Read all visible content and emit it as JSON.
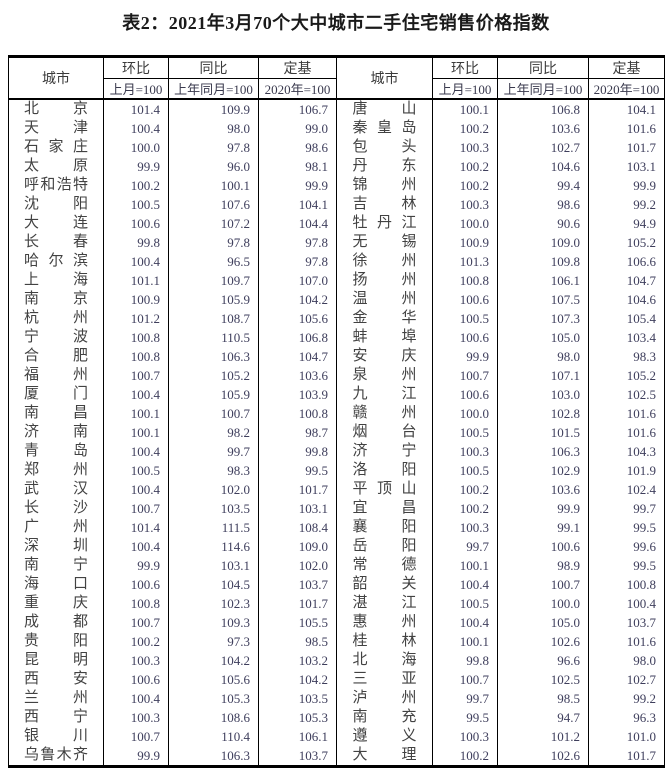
{
  "title": "表2：2021年3月70个大中城市二手住宅销售价格指数",
  "table": {
    "columns": {
      "city": "城市",
      "mom": "环比",
      "mom_base": "上月=100",
      "yoy": "同比",
      "yoy_base": "上年同月=100",
      "fixed": "定基",
      "fixed_base": "2020年=100"
    },
    "left_rows": [
      {
        "city": "北京",
        "mom": "101.4",
        "yoy": "109.9",
        "fixed": "106.7"
      },
      {
        "city": "天津",
        "mom": "100.4",
        "yoy": "98.0",
        "fixed": "99.0"
      },
      {
        "city": "石家庄",
        "mom": "100.0",
        "yoy": "97.8",
        "fixed": "98.6"
      },
      {
        "city": "太原",
        "mom": "99.9",
        "yoy": "96.0",
        "fixed": "98.1"
      },
      {
        "city": "呼和浩特",
        "mom": "100.2",
        "yoy": "100.1",
        "fixed": "99.9"
      },
      {
        "city": "沈阳",
        "mom": "100.5",
        "yoy": "107.6",
        "fixed": "104.1"
      },
      {
        "city": "大连",
        "mom": "100.6",
        "yoy": "107.2",
        "fixed": "104.4"
      },
      {
        "city": "长春",
        "mom": "99.8",
        "yoy": "97.8",
        "fixed": "97.8"
      },
      {
        "city": "哈尔滨",
        "mom": "100.4",
        "yoy": "96.5",
        "fixed": "97.8"
      },
      {
        "city": "上海",
        "mom": "101.1",
        "yoy": "109.7",
        "fixed": "107.0"
      },
      {
        "city": "南京",
        "mom": "100.9",
        "yoy": "105.9",
        "fixed": "104.2"
      },
      {
        "city": "杭州",
        "mom": "101.2",
        "yoy": "108.7",
        "fixed": "105.6"
      },
      {
        "city": "宁波",
        "mom": "100.8",
        "yoy": "110.5",
        "fixed": "106.8"
      },
      {
        "city": "合肥",
        "mom": "100.8",
        "yoy": "106.3",
        "fixed": "104.7"
      },
      {
        "city": "福州",
        "mom": "100.7",
        "yoy": "105.2",
        "fixed": "103.6"
      },
      {
        "city": "厦门",
        "mom": "100.4",
        "yoy": "105.9",
        "fixed": "103.9"
      },
      {
        "city": "南昌",
        "mom": "100.1",
        "yoy": "100.7",
        "fixed": "100.8"
      },
      {
        "city": "济南",
        "mom": "100.1",
        "yoy": "98.2",
        "fixed": "98.7"
      },
      {
        "city": "青岛",
        "mom": "100.4",
        "yoy": "99.7",
        "fixed": "99.8"
      },
      {
        "city": "郑州",
        "mom": "100.5",
        "yoy": "98.3",
        "fixed": "99.5"
      },
      {
        "city": "武汉",
        "mom": "100.4",
        "yoy": "102.0",
        "fixed": "101.7"
      },
      {
        "city": "长沙",
        "mom": "100.7",
        "yoy": "103.5",
        "fixed": "103.1"
      },
      {
        "city": "广州",
        "mom": "101.4",
        "yoy": "111.5",
        "fixed": "108.4"
      },
      {
        "city": "深圳",
        "mom": "100.4",
        "yoy": "114.6",
        "fixed": "109.0"
      },
      {
        "city": "南宁",
        "mom": "99.9",
        "yoy": "103.1",
        "fixed": "102.0"
      },
      {
        "city": "海口",
        "mom": "100.6",
        "yoy": "104.5",
        "fixed": "103.7"
      },
      {
        "city": "重庆",
        "mom": "100.8",
        "yoy": "102.3",
        "fixed": "101.7"
      },
      {
        "city": "成都",
        "mom": "100.7",
        "yoy": "109.3",
        "fixed": "105.5"
      },
      {
        "city": "贵阳",
        "mom": "100.2",
        "yoy": "97.3",
        "fixed": "98.5"
      },
      {
        "city": "昆明",
        "mom": "100.3",
        "yoy": "104.2",
        "fixed": "103.2"
      },
      {
        "city": "西安",
        "mom": "100.6",
        "yoy": "105.6",
        "fixed": "104.2"
      },
      {
        "city": "兰州",
        "mom": "100.4",
        "yoy": "105.3",
        "fixed": "103.5"
      },
      {
        "city": "西宁",
        "mom": "100.3",
        "yoy": "108.6",
        "fixed": "105.3"
      },
      {
        "city": "银川",
        "mom": "100.7",
        "yoy": "110.4",
        "fixed": "106.1"
      },
      {
        "city": "乌鲁木齐",
        "mom": "99.9",
        "yoy": "106.3",
        "fixed": "103.7"
      }
    ],
    "right_rows": [
      {
        "city": "唐山",
        "mom": "100.1",
        "yoy": "106.8",
        "fixed": "104.1"
      },
      {
        "city": "秦皇岛",
        "mom": "100.2",
        "yoy": "103.6",
        "fixed": "101.6"
      },
      {
        "city": "包头",
        "mom": "100.3",
        "yoy": "102.7",
        "fixed": "101.7"
      },
      {
        "city": "丹东",
        "mom": "100.2",
        "yoy": "104.6",
        "fixed": "103.1"
      },
      {
        "city": "锦州",
        "mom": "100.2",
        "yoy": "99.4",
        "fixed": "99.9"
      },
      {
        "city": "吉林",
        "mom": "100.3",
        "yoy": "98.6",
        "fixed": "99.2"
      },
      {
        "city": "牡丹江",
        "mom": "100.0",
        "yoy": "90.6",
        "fixed": "94.9"
      },
      {
        "city": "无锡",
        "mom": "100.9",
        "yoy": "109.0",
        "fixed": "105.2"
      },
      {
        "city": "徐州",
        "mom": "101.3",
        "yoy": "109.8",
        "fixed": "106.6"
      },
      {
        "city": "扬州",
        "mom": "100.8",
        "yoy": "106.1",
        "fixed": "104.7"
      },
      {
        "city": "温州",
        "mom": "100.6",
        "yoy": "107.5",
        "fixed": "104.6"
      },
      {
        "city": "金华",
        "mom": "100.5",
        "yoy": "107.3",
        "fixed": "105.4"
      },
      {
        "city": "蚌埠",
        "mom": "100.6",
        "yoy": "105.0",
        "fixed": "103.4"
      },
      {
        "city": "安庆",
        "mom": "99.9",
        "yoy": "98.0",
        "fixed": "98.3"
      },
      {
        "city": "泉州",
        "mom": "100.7",
        "yoy": "107.1",
        "fixed": "105.2"
      },
      {
        "city": "九江",
        "mom": "100.6",
        "yoy": "103.0",
        "fixed": "102.5"
      },
      {
        "city": "赣州",
        "mom": "100.0",
        "yoy": "102.8",
        "fixed": "101.6"
      },
      {
        "city": "烟台",
        "mom": "100.5",
        "yoy": "101.5",
        "fixed": "101.6"
      },
      {
        "city": "济宁",
        "mom": "100.3",
        "yoy": "106.3",
        "fixed": "104.3"
      },
      {
        "city": "洛阳",
        "mom": "100.5",
        "yoy": "102.9",
        "fixed": "101.9"
      },
      {
        "city": "平顶山",
        "mom": "100.2",
        "yoy": "103.6",
        "fixed": "102.4"
      },
      {
        "city": "宜昌",
        "mom": "100.2",
        "yoy": "99.9",
        "fixed": "99.7"
      },
      {
        "city": "襄阳",
        "mom": "100.3",
        "yoy": "99.1",
        "fixed": "99.5"
      },
      {
        "city": "岳阳",
        "mom": "99.7",
        "yoy": "100.6",
        "fixed": "99.6"
      },
      {
        "city": "常德",
        "mom": "100.1",
        "yoy": "98.9",
        "fixed": "99.5"
      },
      {
        "city": "韶关",
        "mom": "100.4",
        "yoy": "100.7",
        "fixed": "100.8"
      },
      {
        "city": "湛江",
        "mom": "100.5",
        "yoy": "100.0",
        "fixed": "100.4"
      },
      {
        "city": "惠州",
        "mom": "100.4",
        "yoy": "105.0",
        "fixed": "103.7"
      },
      {
        "city": "桂林",
        "mom": "100.1",
        "yoy": "102.6",
        "fixed": "101.6"
      },
      {
        "city": "北海",
        "mom": "99.8",
        "yoy": "96.6",
        "fixed": "98.0"
      },
      {
        "city": "三亚",
        "mom": "100.7",
        "yoy": "102.5",
        "fixed": "102.7"
      },
      {
        "city": "泸州",
        "mom": "99.7",
        "yoy": "98.5",
        "fixed": "99.2"
      },
      {
        "city": "南充",
        "mom": "99.5",
        "yoy": "94.7",
        "fixed": "96.3"
      },
      {
        "city": "遵义",
        "mom": "100.3",
        "yoy": "101.2",
        "fixed": "101.0"
      },
      {
        "city": "大理",
        "mom": "100.2",
        "yoy": "102.6",
        "fixed": "101.7"
      }
    ]
  }
}
